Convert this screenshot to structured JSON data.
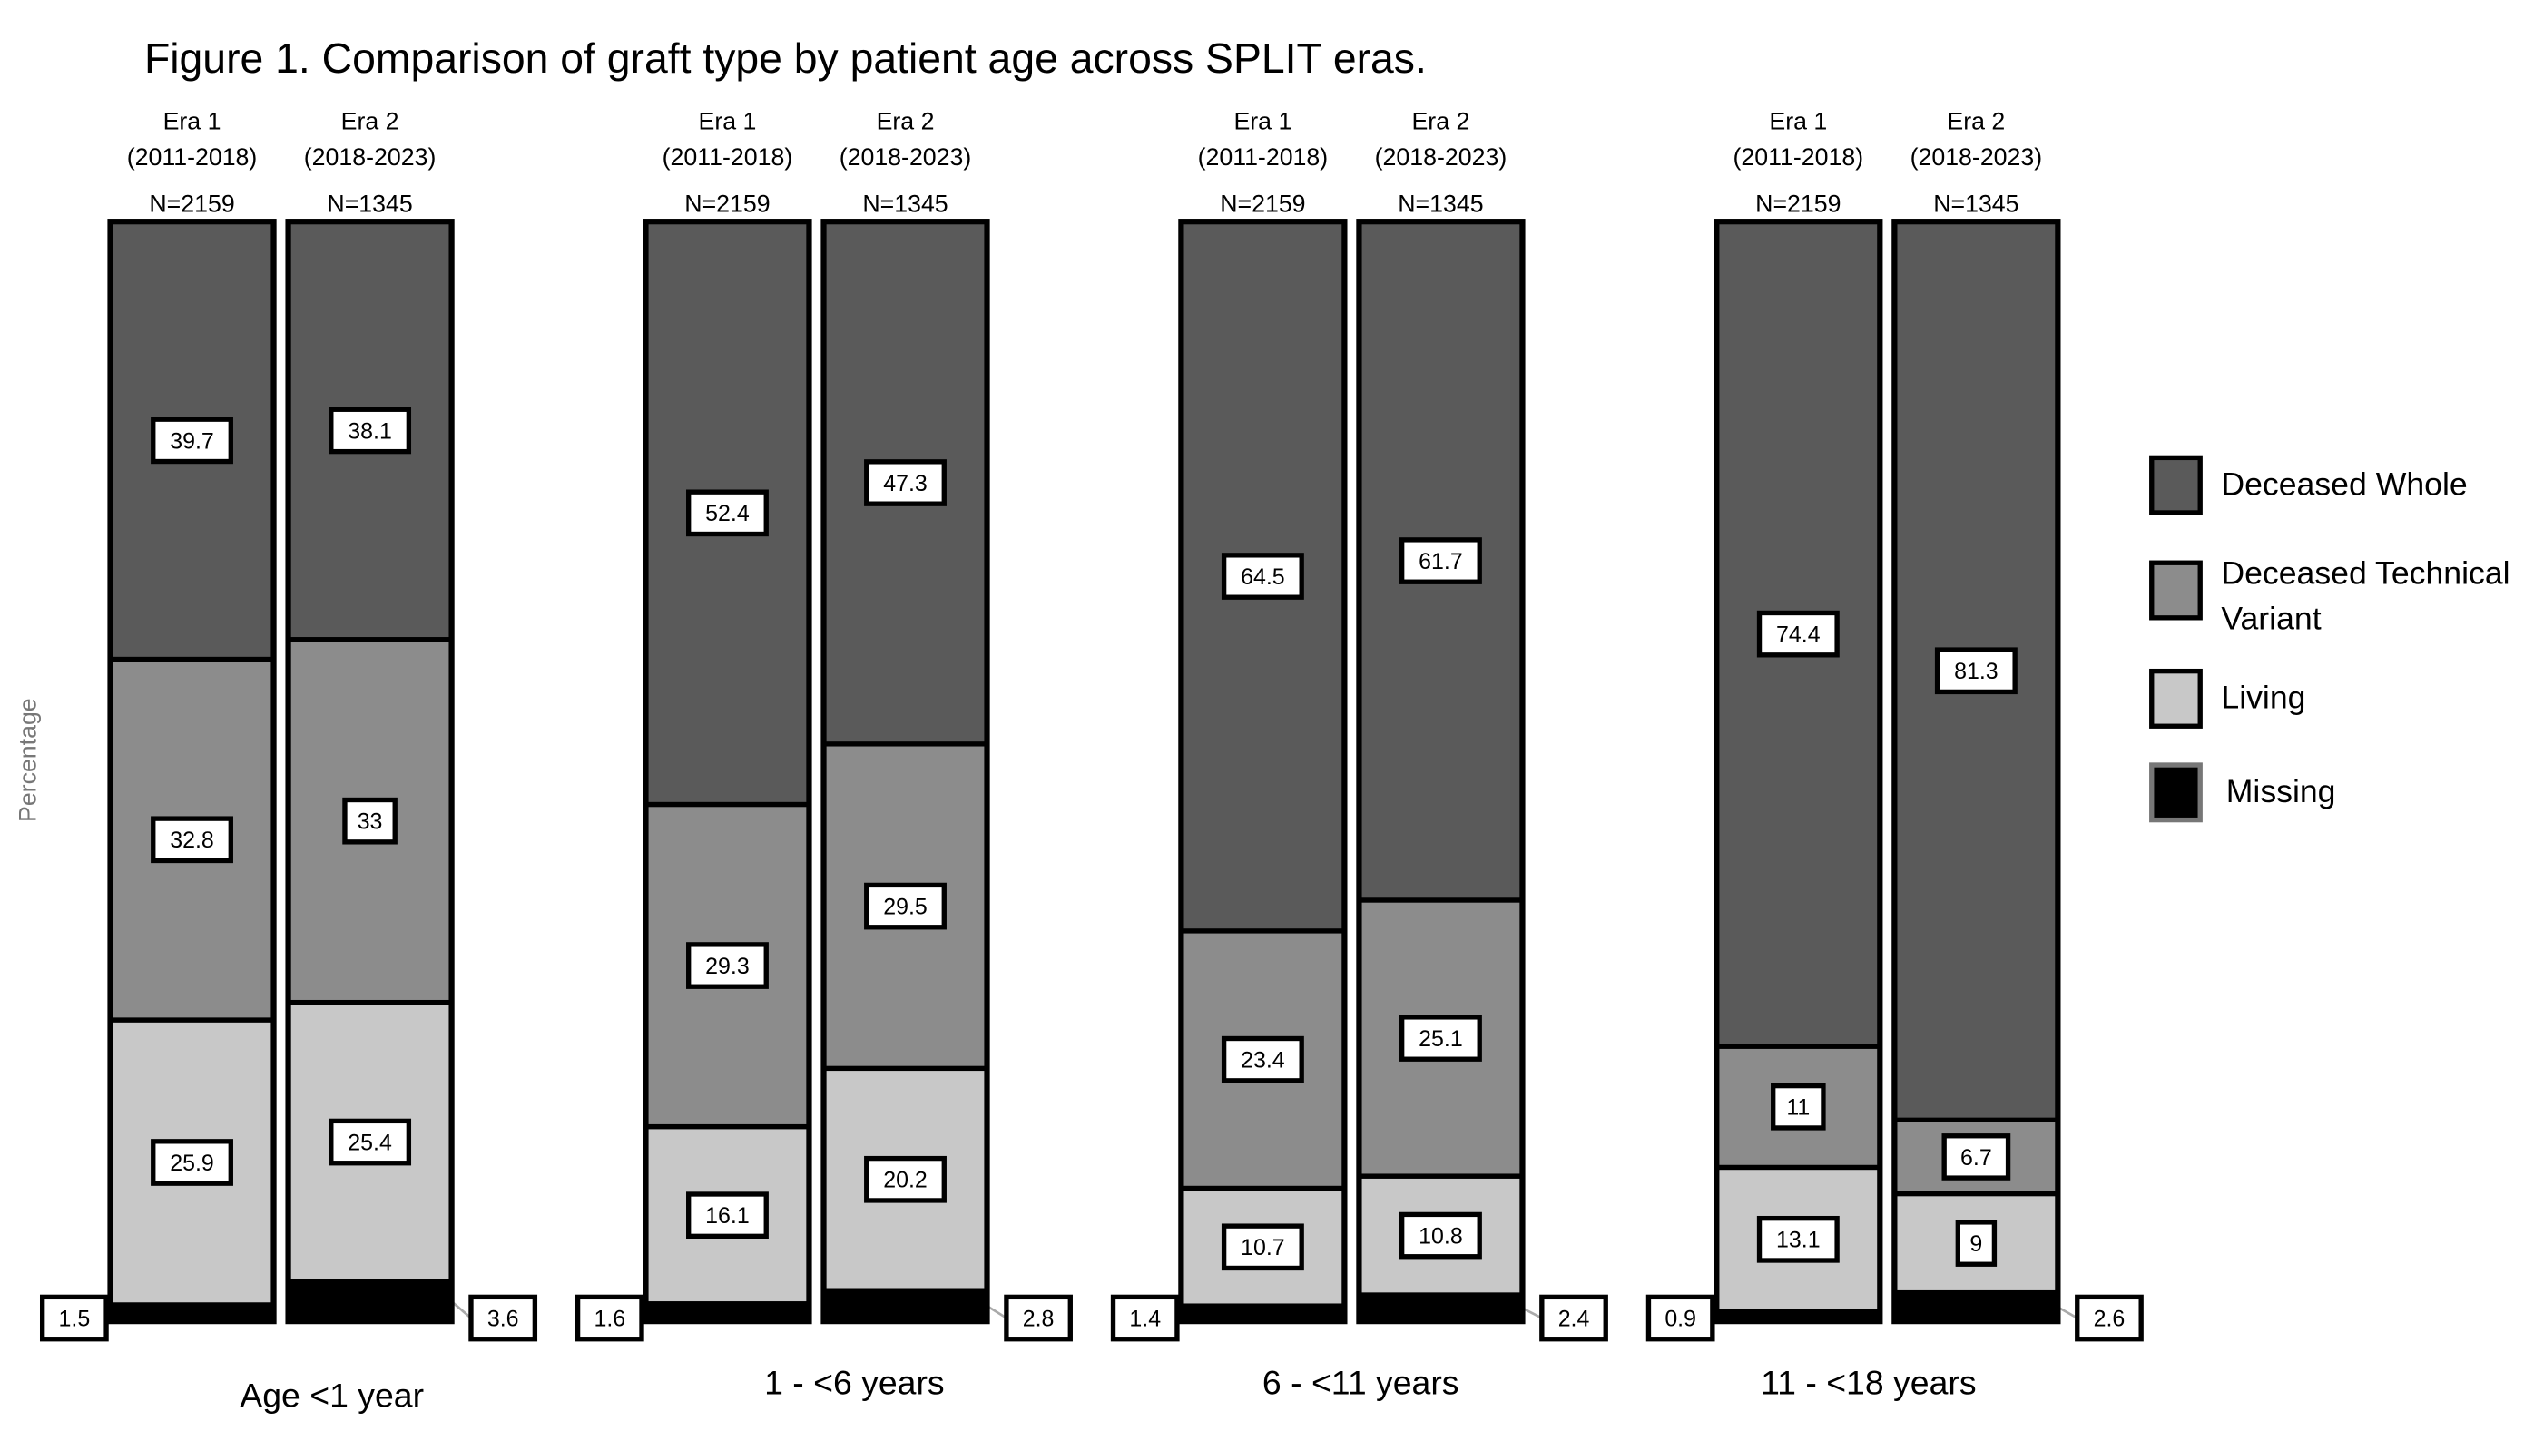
{
  "chart_data": {
    "type": "bar",
    "stacked": true,
    "title": "Figure 1. Comparison of graft type by patient age across SPLIT eras.",
    "ylabel": "Percentage",
    "ylim": [
      0,
      100
    ],
    "grid": false,
    "legend_position": "right",
    "series_names": [
      "Deceased Whole",
      "Deceased Technical Variant",
      "Living",
      "Missing"
    ],
    "series_colors": [
      "#5a5a5a",
      "#8c8c8c",
      "#c8c8c8",
      "#000000"
    ],
    "groups": [
      {
        "label": "Age <1 year",
        "bars": [
          {
            "era": "Era 1",
            "years": "(2011-2018)",
            "n": "N=2159",
            "values": [
              39.7,
              32.8,
              25.9,
              1.5
            ]
          },
          {
            "era": "Era 2",
            "years": "(2018-2023)",
            "n": "N=1345",
            "values": [
              38.1,
              33,
              25.4,
              3.6
            ]
          }
        ]
      },
      {
        "label": "1 - <6 years",
        "bars": [
          {
            "era": "Era 1",
            "years": "(2011-2018)",
            "n": "N=2159",
            "values": [
              52.4,
              29.3,
              16.1,
              1.6
            ]
          },
          {
            "era": "Era 2",
            "years": "(2018-2023)",
            "n": "N=1345",
            "values": [
              47.3,
              29.5,
              20.2,
              2.8
            ]
          }
        ]
      },
      {
        "label": "6 - <11 years",
        "bars": [
          {
            "era": "Era 1",
            "years": "(2011-2018)",
            "n": "N=2159",
            "values": [
              64.5,
              23.4,
              10.7,
              1.4
            ]
          },
          {
            "era": "Era 2",
            "years": "(2018-2023)",
            "n": "N=1345",
            "values": [
              61.7,
              25.1,
              10.8,
              2.4
            ]
          }
        ]
      },
      {
        "label": "11 - <18 years",
        "bars": [
          {
            "era": "Era 1",
            "years": "(2011-2018)",
            "n": "N=2159",
            "values": [
              74.4,
              11,
              13.1,
              0.9
            ]
          },
          {
            "era": "Era 2",
            "years": "(2018-2023)",
            "n": "N=1345",
            "values": [
              81.3,
              6.7,
              9,
              2.6
            ]
          }
        ]
      }
    ]
  }
}
